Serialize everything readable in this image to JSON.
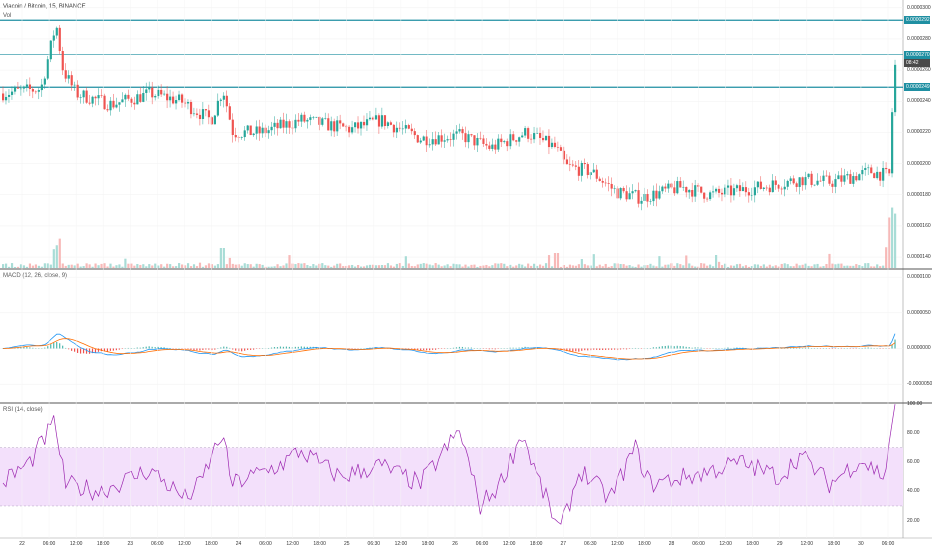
{
  "header": {
    "title": "Viacoin / Bitcoin, 15, BINANCE",
    "vol_label": "Vol"
  },
  "price_pane": {
    "y_ticks": [
      "0.0000300",
      "0.0000280",
      "0.0000260",
      "0.0000240",
      "0.0000220",
      "0.0000200",
      "0.0000180",
      "0.0000160",
      "0.0000140"
    ],
    "tags": [
      {
        "text": "0.0000292",
        "dark": false
      },
      {
        "text": "0.0000270",
        "dark": false
      },
      {
        "text": "08:42",
        "dark": true
      },
      {
        "text": "0.0000249",
        "dark": false
      }
    ],
    "hlines": [
      2.92e-05,
      2.7e-05,
      2.49e-05
    ],
    "line_color": "#1f8fa2",
    "up_color": "#26a69a",
    "down_color": "#ef5350"
  },
  "macd_pane": {
    "label": "MACD (12, 26, close, 9)",
    "y_ticks": [
      "0.0000100",
      "0.0000050",
      "0.0000000",
      "-0.0000050"
    ],
    "macd_color": "#2196f3",
    "signal_color": "#ff6d00"
  },
  "rsi_pane": {
    "label": "RSI (14, close)",
    "y_ticks": [
      "100.00",
      "80.00",
      "60.00",
      "40.00",
      "20.00"
    ],
    "band": [
      30,
      70
    ],
    "line_color": "#9c27b0",
    "band_color": "#f3e0fb"
  },
  "x_axis": {
    "labels": [
      "22",
      "06:00",
      "12:00",
      "18:00",
      "23",
      "06:00",
      "12:00",
      "18:00",
      "24",
      "06:00",
      "12:00",
      "18:00",
      "25",
      "06:30",
      "12:00",
      "18:00",
      "26",
      "06:00",
      "12:00",
      "18:00",
      "27",
      "06:30",
      "12:00",
      "18:00",
      "28",
      "06:00",
      "12:00",
      "18:00",
      "29",
      "12:00",
      "18:00",
      "30",
      "06:00"
    ]
  },
  "chart_data": {
    "type": "line",
    "title": "Viacoin / Bitcoin, 15, BINANCE",
    "price_keypoints": [
      [
        0,
        2.45e-05
      ],
      [
        40,
        2.48e-05
      ],
      [
        55,
        2.9e-05
      ],
      [
        62,
        2.6e-05
      ],
      [
        75,
        2.45e-05
      ],
      [
        110,
        2.38e-05
      ],
      [
        150,
        2.45e-05
      ],
      [
        180,
        2.4e-05
      ],
      [
        210,
        2.28e-05
      ],
      [
        222,
        2.48e-05
      ],
      [
        232,
        2.2e-05
      ],
      [
        260,
        2.2e-05
      ],
      [
        300,
        2.28e-05
      ],
      [
        350,
        2.22e-05
      ],
      [
        380,
        2.28e-05
      ],
      [
        420,
        2.16e-05
      ],
      [
        460,
        2.18e-05
      ],
      [
        490,
        2.1e-05
      ],
      [
        525,
        2.2e-05
      ],
      [
        555,
        2.1e-05
      ],
      [
        565,
        1.98e-05
      ],
      [
        590,
        1.95e-05
      ],
      [
        615,
        1.82e-05
      ],
      [
        640,
        1.78e-05
      ],
      [
        680,
        1.85e-05
      ],
      [
        710,
        1.8e-05
      ],
      [
        760,
        1.85e-05
      ],
      [
        800,
        1.9e-05
      ],
      [
        830,
        1.88e-05
      ],
      [
        870,
        1.95e-05
      ],
      [
        888,
        1.92e-05
      ],
      [
        893,
        2.6e-05
      ],
      [
        897,
        2.7e-05
      ]
    ],
    "ylim": [
      1.33e-05,
      3.05e-05
    ],
    "macd_ylim": [
      -7.5e-06,
      1.1e-05
    ],
    "rsi_ylim": [
      8,
      100
    ],
    "rsi_keypoints": [
      [
        0,
        45
      ],
      [
        30,
        60
      ],
      [
        55,
        88
      ],
      [
        65,
        45
      ],
      [
        100,
        40
      ],
      [
        150,
        55
      ],
      [
        185,
        35
      ],
      [
        200,
        45
      ],
      [
        222,
        80
      ],
      [
        232,
        45
      ],
      [
        280,
        58
      ],
      [
        300,
        68
      ],
      [
        340,
        50
      ],
      [
        380,
        58
      ],
      [
        420,
        45
      ],
      [
        460,
        82
      ],
      [
        480,
        30
      ],
      [
        500,
        45
      ],
      [
        522,
        80
      ],
      [
        540,
        45
      ],
      [
        560,
        12
      ],
      [
        580,
        55
      ],
      [
        610,
        35
      ],
      [
        635,
        70
      ],
      [
        650,
        45
      ],
      [
        700,
        52
      ],
      [
        740,
        60
      ],
      [
        780,
        50
      ],
      [
        800,
        65
      ],
      [
        830,
        45
      ],
      [
        860,
        62
      ],
      [
        885,
        50
      ],
      [
        893,
        95
      ]
    ]
  }
}
